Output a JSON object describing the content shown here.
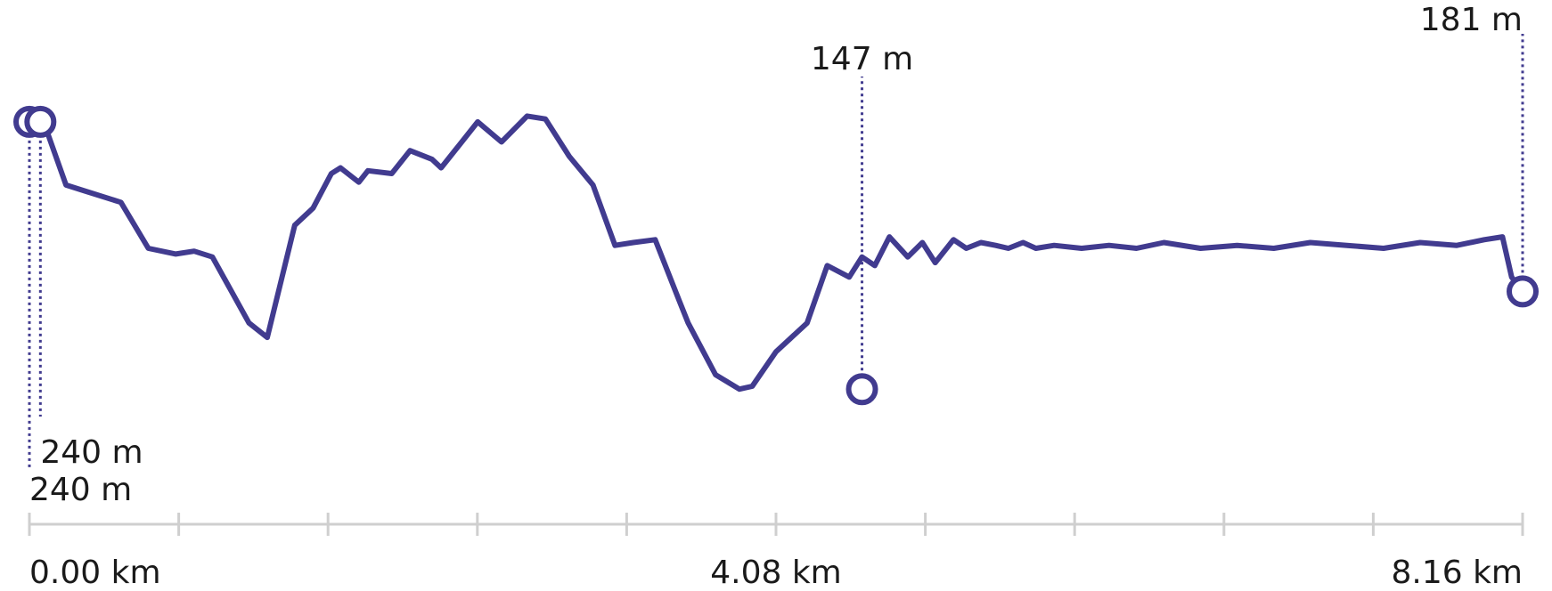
{
  "chart_data": {
    "type": "line",
    "title": "",
    "xlabel": "",
    "ylabel": "",
    "x_unit": "km",
    "y_unit": "m",
    "xlim": [
      0,
      8.16
    ],
    "ylim": [
      100,
      270
    ],
    "series": [
      {
        "x": [
          0.0,
          0.03,
          0.06,
          0.1,
          0.2,
          0.3,
          0.5,
          0.65,
          0.8,
          0.9,
          1.0,
          1.2,
          1.3,
          1.45,
          1.55,
          1.65,
          1.7,
          1.8,
          1.85,
          1.98,
          2.08,
          2.2,
          2.25,
          2.35,
          2.45,
          2.58,
          2.72,
          2.82,
          2.95,
          3.08,
          3.2,
          3.3,
          3.42,
          3.55,
          3.6,
          3.75,
          3.88,
          3.95,
          4.08,
          4.25,
          4.36,
          4.48,
          4.55,
          4.62,
          4.7,
          4.8,
          4.88,
          4.95,
          5.05,
          5.12,
          5.2,
          5.28,
          5.35,
          5.43,
          5.5,
          5.6,
          5.75,
          5.9,
          6.05,
          6.2,
          6.4,
          6.6,
          6.8,
          7.0,
          7.2,
          7.4,
          7.6,
          7.8,
          7.95,
          8.05,
          8.1,
          8.16
        ],
        "y": [
          240,
          241,
          239,
          236,
          218,
          216,
          212,
          196,
          194,
          195,
          193,
          170,
          165,
          204,
          210,
          222,
          224,
          219,
          223,
          222,
          230,
          227,
          224,
          232,
          240,
          233,
          242,
          241,
          228,
          218,
          197,
          198,
          199,
          178,
          170,
          152,
          147,
          148,
          160,
          170,
          190,
          186,
          193,
          190,
          200,
          193,
          198,
          191,
          199,
          196,
          198,
          197,
          196,
          198,
          196,
          197,
          196,
          197,
          196,
          198,
          196,
          197,
          196,
          198,
          197,
          196,
          198,
          197,
          199,
          200,
          186,
          181
        ]
      }
    ],
    "markers": [
      {
        "label": "240 m",
        "x": 0.0,
        "y": 240
      },
      {
        "label": "240 m",
        "x": 0.06,
        "y": 240
      },
      {
        "label": "147 m",
        "x": 4.55,
        "y": 147
      },
      {
        "label": "181 m",
        "x": 8.16,
        "y": 181
      }
    ],
    "x_ticks": [
      0,
      0.816,
      1.632,
      2.448,
      3.264,
      4.08,
      4.896,
      5.712,
      6.528,
      7.344,
      8.16
    ],
    "x_tick_labels": [
      "0.00 km",
      "4.08 km",
      "8.16 km"
    ],
    "grid": false
  }
}
